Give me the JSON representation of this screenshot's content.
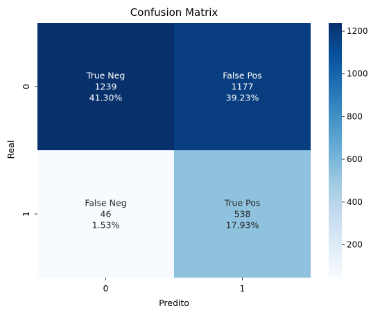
{
  "chart_data": {
    "type": "heatmap",
    "title": "Confusion Matrix",
    "xlabel": "Predito",
    "ylabel": "Real",
    "x_categories": [
      "0",
      "1"
    ],
    "y_categories": [
      "0",
      "1"
    ],
    "colormap": "Blues",
    "colorbar": {
      "min": 46,
      "max": 1239,
      "ticks": [
        200,
        400,
        600,
        800,
        1000,
        1200
      ]
    },
    "cells": [
      {
        "row": 0,
        "col": 0,
        "name": "True Neg",
        "count": 1239,
        "percent": "41.30%"
      },
      {
        "row": 0,
        "col": 1,
        "name": "False Pos",
        "count": 1177,
        "percent": "39.23%"
      },
      {
        "row": 1,
        "col": 0,
        "name": "False Neg",
        "count": 46,
        "percent": "1.53%"
      },
      {
        "row": 1,
        "col": 1,
        "name": "True Pos",
        "count": 538,
        "percent": "17.93%"
      }
    ]
  }
}
